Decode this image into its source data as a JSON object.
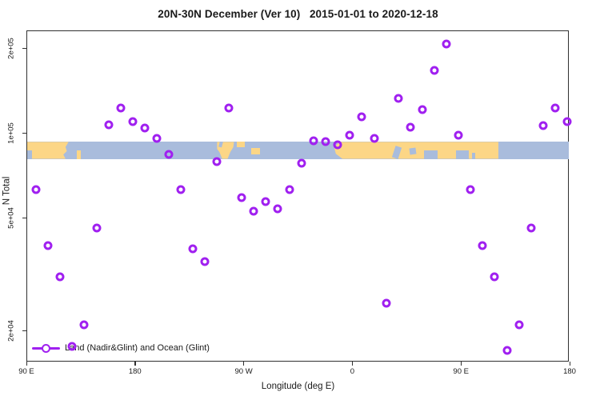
{
  "title": "20N-30N December (Ver 10)   2015-01-01 to 2020-12-18",
  "legend": {
    "label": "Land (Nadir&Glint) and Ocean (Glint)"
  },
  "axes": {
    "x": {
      "label": "Longitude (deg E)"
    },
    "y": {
      "label": "N Total"
    }
  },
  "colors": {
    "point": "#A020F0",
    "land": "#FCD686",
    "ocean": "#A9BCDC",
    "axis": "#303030",
    "background": "#FFFFFF"
  },
  "map_band": {
    "top_value": 93000,
    "bottom_value": 81000,
    "land_segments": [
      {
        "from": 90,
        "to": 126,
        "v": "full",
        "clip": "asia-east"
      },
      {
        "from": 131.5,
        "to": 135,
        "v": "low"
      },
      {
        "from": 248,
        "to": 262,
        "v": "full",
        "clip": "mexico"
      },
      {
        "from": 264,
        "to": 271,
        "v": "top"
      },
      {
        "from": 276.5,
        "to": 283.5,
        "v": "mid"
      },
      {
        "from": 345,
        "to": 481,
        "v": "full",
        "clip": "afro-asia"
      }
    ],
    "ocean_patches": [
      {
        "from": 90,
        "to": 94.5,
        "v": "low"
      },
      {
        "from": 250,
        "to": 252.5,
        "v": "top",
        "rot": 15
      },
      {
        "from": 394,
        "to": 399.5,
        "v": "low2",
        "rot": 18
      },
      {
        "from": 407.5,
        "to": 413,
        "v": "mid",
        "rot": -8
      },
      {
        "from": 419.5,
        "to": 430.5,
        "v": "low"
      },
      {
        "from": 446,
        "to": 456.5,
        "v": "low"
      },
      {
        "from": 459,
        "to": 462,
        "v": "low3"
      }
    ]
  },
  "chart_data": {
    "type": "scatter",
    "title": "20N-30N December (Ver 10)   2015-01-01 to 2020-12-18",
    "xlabel": "Longitude (deg E)",
    "ylabel": "N Total",
    "y_scale": "log",
    "x_axis_note": "axis runs 90E eastward around globe to 180 (450 degrees span)",
    "x_range_deg_along_axis": [
      90,
      540
    ],
    "x_ticks": [
      {
        "pos": 90,
        "label": "90 E"
      },
      {
        "pos": 180,
        "label": "180"
      },
      {
        "pos": 270,
        "label": "90 W"
      },
      {
        "pos": 360,
        "label": "0"
      },
      {
        "pos": 450,
        "label": "90 E"
      },
      {
        "pos": 540,
        "label": "180"
      }
    ],
    "y_ticks": [
      {
        "value": 20000,
        "label": "2e+04"
      },
      {
        "value": 50000,
        "label": "5e+04"
      },
      {
        "value": 100000,
        "label": "1e+05"
      },
      {
        "value": 200000,
        "label": "2e+05"
      }
    ],
    "series": [
      {
        "name": "Land (Nadir&Glint) and Ocean (Glint)",
        "marker": "open-circle",
        "color": "#A020F0",
        "points": [
          [
            98,
            63000
          ],
          [
            108,
            40000
          ],
          [
            118,
            31000
          ],
          [
            128,
            17500
          ],
          [
            138,
            21000
          ],
          [
            148,
            46000
          ],
          [
            158,
            107000
          ],
          [
            168,
            123000
          ],
          [
            178,
            110000
          ],
          [
            188,
            104000
          ],
          [
            198,
            96000
          ],
          [
            208,
            84000
          ],
          [
            218,
            63000
          ],
          [
            228,
            39000
          ],
          [
            238,
            35000
          ],
          [
            248,
            79000
          ],
          [
            258,
            123000
          ],
          [
            268,
            59000
          ],
          [
            278,
            53000
          ],
          [
            288,
            57000
          ],
          [
            298,
            54000
          ],
          [
            308,
            63000
          ],
          [
            318,
            78000
          ],
          [
            328,
            94000
          ],
          [
            338,
            93000
          ],
          [
            348,
            91000
          ],
          [
            358,
            98000
          ],
          [
            368,
            114000
          ],
          [
            378,
            96000
          ],
          [
            388,
            25000
          ],
          [
            398,
            133000
          ],
          [
            408,
            105000
          ],
          [
            418,
            121000
          ],
          [
            428,
            167000
          ],
          [
            438,
            207000
          ],
          [
            448,
            98000
          ],
          [
            458,
            63000
          ],
          [
            468,
            40000
          ],
          [
            478,
            31000
          ],
          [
            488,
            17000
          ],
          [
            498,
            21000
          ],
          [
            508,
            46000
          ],
          [
            518,
            106000
          ],
          [
            528,
            123000
          ],
          [
            538,
            110000
          ]
        ]
      }
    ]
  }
}
